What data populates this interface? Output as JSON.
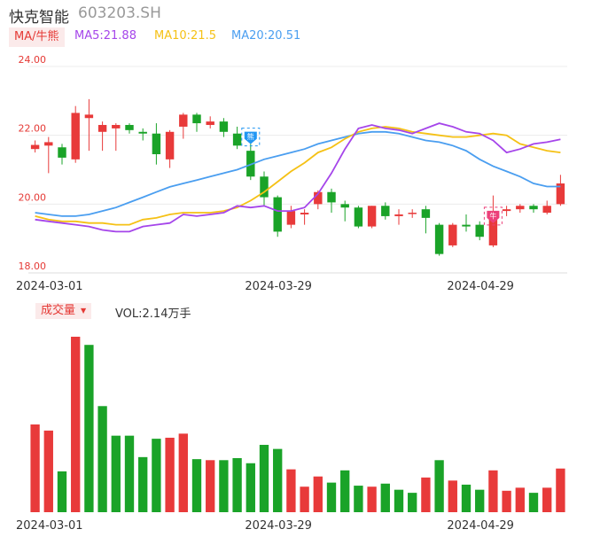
{
  "header": {
    "stock_name": "快克智能",
    "stock_code": "603203.SH"
  },
  "ma_bar": {
    "switch_label": "MA/牛熊",
    "ma5": {
      "label": "MA5:21.88",
      "color": "#a545ea"
    },
    "ma10": {
      "label": "MA10:21.5",
      "color": "#f5c115"
    },
    "ma20": {
      "label": "MA20:20.51",
      "color": "#4a9ef0"
    }
  },
  "volume_bar": {
    "switch_label": "成交量",
    "vol_label": "VOL:2.14万手"
  },
  "markers": {
    "bear_glyph": "熊",
    "bull_glyph": "牛"
  },
  "colors": {
    "up": "#e83a3a",
    "down": "#1aa328"
  },
  "chart_data": [
    {
      "type": "candlestick",
      "ylim": [
        18.0,
        24.0
      ],
      "y_ticks": [
        "24.00",
        "22.00",
        "20.00",
        "18.00"
      ],
      "x_tick_labels": [
        {
          "index": 1,
          "label": "2024-03-01"
        },
        {
          "index": 18,
          "label": "2024-03-29"
        },
        {
          "index": 33,
          "label": "2024-04-29"
        }
      ],
      "candles": [
        {
          "o": 21.6,
          "c": 21.72,
          "h": 21.85,
          "l": 21.5
        },
        {
          "o": 21.7,
          "c": 21.8,
          "h": 21.95,
          "l": 20.9
        },
        {
          "o": 21.65,
          "c": 21.35,
          "h": 21.75,
          "l": 21.15
        },
        {
          "o": 21.3,
          "c": 22.65,
          "h": 22.85,
          "l": 21.2
        },
        {
          "o": 22.5,
          "c": 22.6,
          "h": 23.05,
          "l": 21.55
        },
        {
          "o": 22.1,
          "c": 22.3,
          "h": 22.4,
          "l": 21.55
        },
        {
          "o": 22.2,
          "c": 22.3,
          "h": 22.35,
          "l": 21.55
        },
        {
          "o": 22.3,
          "c": 22.15,
          "h": 22.35,
          "l": 22.05
        },
        {
          "o": 22.1,
          "c": 22.05,
          "h": 22.2,
          "l": 21.85
        },
        {
          "o": 22.05,
          "c": 21.45,
          "h": 22.35,
          "l": 21.15
        },
        {
          "o": 21.3,
          "c": 22.1,
          "h": 22.15,
          "l": 21.05
        },
        {
          "o": 22.25,
          "c": 22.6,
          "h": 22.65,
          "l": 21.9
        },
        {
          "o": 22.6,
          "c": 22.35,
          "h": 22.65,
          "l": 22.1
        },
        {
          "o": 22.3,
          "c": 22.4,
          "h": 22.55,
          "l": 22.2
        },
        {
          "o": 22.4,
          "c": 22.1,
          "h": 22.5,
          "l": 21.95
        },
        {
          "o": 22.05,
          "c": 21.7,
          "h": 22.25,
          "l": 21.6
        },
        {
          "o": 21.55,
          "c": 20.8,
          "h": 21.75,
          "l": 20.7
        },
        {
          "o": 20.8,
          "c": 20.2,
          "h": 20.95,
          "l": 19.95
        },
        {
          "o": 20.2,
          "c": 19.2,
          "h": 20.25,
          "l": 19.05
        },
        {
          "o": 19.4,
          "c": 19.8,
          "h": 19.95,
          "l": 19.3
        },
        {
          "o": 19.7,
          "c": 19.75,
          "h": 19.85,
          "l": 19.4
        },
        {
          "o": 20.0,
          "c": 20.35,
          "h": 20.4,
          "l": 19.85
        },
        {
          "o": 20.35,
          "c": 20.05,
          "h": 20.45,
          "l": 19.75
        },
        {
          "o": 20.0,
          "c": 19.9,
          "h": 20.1,
          "l": 19.5
        },
        {
          "o": 19.9,
          "c": 19.35,
          "h": 19.95,
          "l": 19.3
        },
        {
          "o": 19.35,
          "c": 19.95,
          "h": 19.95,
          "l": 19.3
        },
        {
          "o": 19.95,
          "c": 19.65,
          "h": 20.05,
          "l": 19.55
        },
        {
          "o": 19.65,
          "c": 19.7,
          "h": 19.85,
          "l": 19.4
        },
        {
          "o": 19.75,
          "c": 19.75,
          "h": 19.85,
          "l": 19.6
        },
        {
          "o": 19.85,
          "c": 19.6,
          "h": 19.95,
          "l": 19.15
        },
        {
          "o": 19.4,
          "c": 18.55,
          "h": 19.45,
          "l": 18.5
        },
        {
          "o": 18.8,
          "c": 19.4,
          "h": 19.45,
          "l": 18.75
        },
        {
          "o": 19.4,
          "c": 19.35,
          "h": 19.7,
          "l": 19.2
        },
        {
          "o": 19.4,
          "c": 19.05,
          "h": 19.5,
          "l": 18.95
        },
        {
          "o": 18.8,
          "c": 19.8,
          "h": 20.25,
          "l": 18.75
        },
        {
          "o": 19.8,
          "c": 19.85,
          "h": 19.95,
          "l": 19.65
        },
        {
          "o": 19.85,
          "c": 19.95,
          "h": 20.0,
          "l": 19.75
        },
        {
          "o": 19.95,
          "c": 19.85,
          "h": 20.0,
          "l": 19.75
        },
        {
          "o": 19.75,
          "c": 19.95,
          "h": 20.1,
          "l": 19.7
        },
        {
          "o": 20.0,
          "c": 20.6,
          "h": 20.85,
          "l": 19.95
        }
      ],
      "ma5": [
        19.55,
        19.5,
        19.45,
        19.4,
        19.35,
        19.25,
        19.2,
        19.2,
        19.35,
        19.4,
        19.45,
        19.7,
        19.65,
        19.7,
        19.75,
        19.95,
        19.9,
        19.95,
        19.8,
        19.8,
        19.9,
        20.3,
        20.9,
        21.6,
        22.2,
        22.3,
        22.2,
        22.15,
        22.05,
        22.2,
        22.35,
        22.25,
        22.1,
        22.05,
        21.85,
        21.5,
        21.6,
        21.75,
        21.8,
        21.88
      ],
      "ma10": [
        19.65,
        19.55,
        19.5,
        19.5,
        19.45,
        19.45,
        19.4,
        19.4,
        19.55,
        19.6,
        19.7,
        19.75,
        19.75,
        19.75,
        19.8,
        19.9,
        20.1,
        20.35,
        20.65,
        20.95,
        21.2,
        21.5,
        21.65,
        21.9,
        22.1,
        22.2,
        22.25,
        22.2,
        22.1,
        22.05,
        22.0,
        21.95,
        21.95,
        22.0,
        22.05,
        22.0,
        21.75,
        21.65,
        21.55,
        21.5
      ],
      "ma20": [
        19.75,
        19.7,
        19.65,
        19.65,
        19.7,
        19.8,
        19.9,
        20.05,
        20.2,
        20.35,
        20.5,
        20.6,
        20.7,
        20.8,
        20.9,
        21.0,
        21.15,
        21.3,
        21.4,
        21.5,
        21.6,
        21.75,
        21.85,
        21.95,
        22.05,
        22.1,
        22.1,
        22.05,
        21.95,
        21.85,
        21.8,
        21.7,
        21.55,
        21.3,
        21.1,
        20.95,
        20.8,
        20.6,
        20.51,
        20.51
      ]
    },
    {
      "type": "bar",
      "title": "成交量",
      "x_tick_labels": [
        {
          "index": 1,
          "label": "2024-03-01"
        },
        {
          "index": 18,
          "label": "2024-03-29"
        },
        {
          "index": 33,
          "label": "2024-04-29"
        }
      ],
      "values": [
        4.3,
        4.0,
        2.0,
        8.6,
        8.2,
        5.2,
        3.75,
        3.75,
        2.7,
        3.6,
        3.65,
        3.85,
        2.6,
        2.55,
        2.55,
        2.65,
        2.4,
        3.3,
        3.1,
        2.1,
        1.25,
        1.75,
        1.45,
        2.05,
        1.3,
        1.25,
        1.4,
        1.1,
        0.95,
        1.7,
        2.55,
        1.55,
        1.35,
        1.1,
        2.05,
        1.05,
        1.2,
        0.95,
        1.2,
        2.14
      ],
      "up": [
        true,
        true,
        false,
        true,
        false,
        false,
        false,
        false,
        false,
        false,
        true,
        true,
        false,
        true,
        false,
        false,
        false,
        false,
        false,
        true,
        true,
        true,
        false,
        false,
        false,
        true,
        false,
        false,
        false,
        true,
        false,
        true,
        false,
        false,
        true,
        true,
        true,
        false,
        true,
        true
      ]
    }
  ]
}
